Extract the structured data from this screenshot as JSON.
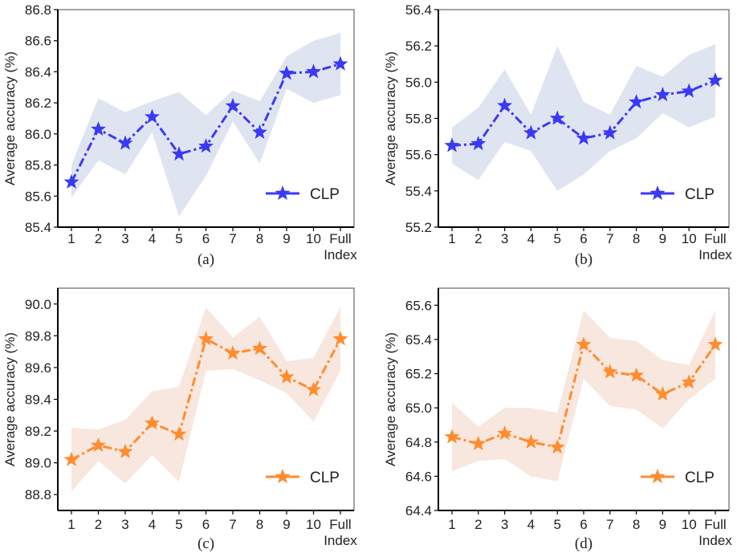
{
  "chart_data": [
    {
      "type": "line",
      "caption": "(a)",
      "xlabel": "Index",
      "ylabel": "Average accuracy (%)",
      "categories": [
        "1",
        "2",
        "3",
        "4",
        "5",
        "6",
        "7",
        "8",
        "9",
        "10",
        "Full"
      ],
      "ylim": [
        85.4,
        86.8
      ],
      "yticks": [
        "85.4",
        "85.6",
        "85.8",
        "86.0",
        "86.2",
        "86.4",
        "86.6",
        "86.8"
      ],
      "legend_position": "lower-right",
      "color": "#3a3af5",
      "band_color": "#dfe4f1",
      "series": [
        {
          "name": "CLP",
          "values": [
            85.69,
            86.03,
            85.94,
            86.11,
            85.87,
            85.92,
            86.18,
            86.01,
            86.39,
            86.4,
            86.45
          ],
          "upper": [
            85.8,
            86.23,
            86.14,
            86.21,
            86.27,
            86.12,
            86.28,
            86.21,
            86.5,
            86.6,
            86.65
          ],
          "lower": [
            85.59,
            85.83,
            85.74,
            86.01,
            85.47,
            85.73,
            86.08,
            85.81,
            86.29,
            86.2,
            86.25
          ]
        }
      ]
    },
    {
      "type": "line",
      "caption": "(b)",
      "xlabel": "Index",
      "ylabel": "Average accuracy (%)",
      "categories": [
        "1",
        "2",
        "3",
        "4",
        "5",
        "6",
        "7",
        "8",
        "9",
        "10",
        "Full"
      ],
      "ylim": [
        55.2,
        56.4
      ],
      "yticks": [
        "55.2",
        "55.4",
        "55.6",
        "55.8",
        "56.0",
        "56.2",
        "56.4"
      ],
      "legend_position": "lower-right",
      "color": "#3a3af5",
      "band_color": "#dfe4f1",
      "series": [
        {
          "name": "CLP",
          "values": [
            55.65,
            55.66,
            55.87,
            55.72,
            55.8,
            55.69,
            55.72,
            55.89,
            55.93,
            55.95,
            56.01
          ],
          "upper": [
            55.75,
            55.86,
            56.07,
            55.82,
            56.2,
            55.89,
            55.82,
            56.09,
            56.03,
            56.15,
            56.21
          ],
          "lower": [
            55.55,
            55.46,
            55.67,
            55.62,
            55.4,
            55.49,
            55.62,
            55.69,
            55.83,
            55.75,
            55.81
          ]
        }
      ]
    },
    {
      "type": "line",
      "caption": "(c)",
      "xlabel": "Index",
      "ylabel": "Average accuracy (%)",
      "categories": [
        "1",
        "2",
        "3",
        "4",
        "5",
        "6",
        "7",
        "8",
        "9",
        "10",
        "Full"
      ],
      "ylim": [
        88.7,
        90.1
      ],
      "yticks": [
        "88.8",
        "89.0",
        "89.2",
        "89.4",
        "89.6",
        "89.8",
        "90.0"
      ],
      "legend_position": "lower-right",
      "color": "#ff8c2e",
      "band_color": "#f8e7de",
      "series": [
        {
          "name": "CLP",
          "values": [
            89.02,
            89.11,
            89.07,
            89.25,
            89.18,
            89.78,
            89.69,
            89.72,
            89.54,
            89.46,
            89.78
          ],
          "upper": [
            89.22,
            89.21,
            89.27,
            89.45,
            89.48,
            89.98,
            89.79,
            89.92,
            89.64,
            89.66,
            89.98
          ],
          "lower": [
            88.82,
            89.01,
            88.87,
            89.05,
            88.88,
            89.58,
            89.59,
            89.52,
            89.44,
            89.26,
            89.58
          ]
        }
      ]
    },
    {
      "type": "line",
      "caption": "(d)",
      "xlabel": "Index",
      "ylabel": "Average accuracy (%)",
      "categories": [
        "1",
        "2",
        "3",
        "4",
        "5",
        "6",
        "7",
        "8",
        "9",
        "10",
        "Full"
      ],
      "ylim": [
        64.4,
        65.7
      ],
      "yticks": [
        "64.4",
        "64.6",
        "64.8",
        "65.0",
        "65.2",
        "65.4",
        "65.6"
      ],
      "legend_position": "lower-right",
      "color": "#ff8c2e",
      "band_color": "#f8e7de",
      "series": [
        {
          "name": "CLP",
          "values": [
            64.83,
            64.79,
            64.85,
            64.8,
            64.77,
            65.37,
            65.21,
            65.19,
            65.08,
            65.15,
            65.37
          ],
          "upper": [
            65.03,
            64.89,
            65.0,
            65.0,
            64.97,
            65.57,
            65.41,
            65.39,
            65.28,
            65.25,
            65.57
          ],
          "lower": [
            64.63,
            64.69,
            64.7,
            64.6,
            64.57,
            65.17,
            65.01,
            64.99,
            64.88,
            65.05,
            65.17
          ]
        }
      ]
    }
  ]
}
